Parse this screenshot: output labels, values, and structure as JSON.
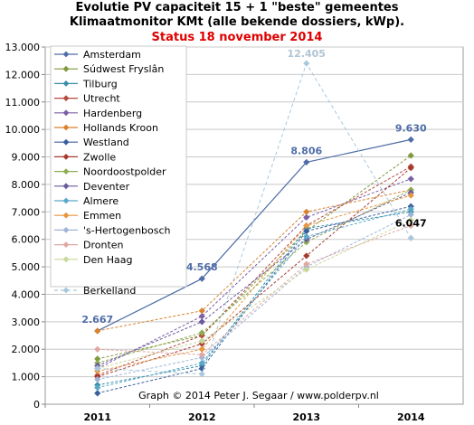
{
  "title": {
    "line1": "Evolutie PV capaciteit 15 + 1 \"beste\" gemeentes",
    "line2": "Klimaatmonitor KMt (alle bekende dossiers, kWp).",
    "status": "Status 18 november 2014"
  },
  "credit": "Graph © 2014 Peter J. Segaar / www.polderpv.nl",
  "chart_data": {
    "type": "line",
    "x": [
      "2011",
      "2012",
      "2013",
      "2014"
    ],
    "ylim": [
      0,
      13000
    ],
    "yticks": [
      {
        "v": 0,
        "label": "0"
      },
      {
        "v": 1000,
        "label": "1.000"
      },
      {
        "v": 2000,
        "label": "2.000"
      },
      {
        "v": 3000,
        "label": "3.000"
      },
      {
        "v": 4000,
        "label": "4.000"
      },
      {
        "v": 5000,
        "label": "5.000"
      },
      {
        "v": 6000,
        "label": "6.000"
      },
      {
        "v": 7000,
        "label": "7.000"
      },
      {
        "v": 8000,
        "label": "8.000"
      },
      {
        "v": 9000,
        "label": "9.000"
      },
      {
        "v": 10000,
        "label": "10.000"
      },
      {
        "v": 11000,
        "label": "11.000"
      },
      {
        "v": 12000,
        "label": "12.000"
      },
      {
        "v": 13000,
        "label": "13.000"
      }
    ],
    "grid": true,
    "legend": "top-left",
    "series": [
      {
        "name": "Amsterdam",
        "color": "#4f6da8",
        "values": [
          2667,
          4568,
          8806,
          9630
        ],
        "width": 1.2
      },
      {
        "name": "Súdwest Fryslân",
        "color": "#7f9a3c",
        "values": [
          1650,
          2500,
          6300,
          9050
        ]
      },
      {
        "name": "Tilburg",
        "color": "#3a8fa8",
        "values": [
          700,
          1400,
          6400,
          7000
        ]
      },
      {
        "name": "Utrecht",
        "color": "#b54a3e",
        "values": [
          1050,
          2500,
          6500,
          8650
        ]
      },
      {
        "name": "Hardenberg",
        "color": "#7a5fa5",
        "values": [
          1300,
          3200,
          6800,
          8200
        ]
      },
      {
        "name": "Hollands Kroon",
        "color": "#d9822b",
        "values": [
          2667,
          3400,
          7000,
          7800
        ]
      },
      {
        "name": "Westland",
        "color": "#3b5f9e",
        "values": [
          400,
          1300,
          6300,
          7200
        ]
      },
      {
        "name": "Zwolle",
        "color": "#a63a2e",
        "values": [
          1000,
          2200,
          5400,
          8600
        ]
      },
      {
        "name": "Noordoostpolder",
        "color": "#8fad52",
        "values": [
          1500,
          2600,
          5900,
          7800
        ]
      },
      {
        "name": "Deventer",
        "color": "#6a5a9e",
        "values": [
          1400,
          3000,
          6000,
          7700
        ]
      },
      {
        "name": "Almere",
        "color": "#5aa8c8",
        "values": [
          600,
          1500,
          6100,
          7100
        ]
      },
      {
        "name": "Emmen",
        "color": "#e7963f",
        "values": [
          1200,
          2000,
          6500,
          7600
        ]
      },
      {
        "name": "'s-Hertogenbosch",
        "color": "#9fb4d8",
        "values": [
          900,
          1700,
          5000,
          6900
        ]
      },
      {
        "name": "Dronten",
        "color": "#e0a8a0",
        "values": [
          2000,
          1800,
          5100,
          6500
        ]
      },
      {
        "name": "Den Haag",
        "color": "#c8d79a",
        "values": [
          1300,
          2300,
          4900,
          6700
        ]
      },
      {
        "name": "Berkelland",
        "color": "#a9c7dc",
        "values": [
          1300,
          1100,
          12405,
          6047
        ],
        "dashed": true
      }
    ],
    "data_labels": [
      {
        "text": "2.667",
        "series": 0,
        "point": 0,
        "color": "#4f6da8"
      },
      {
        "text": "4.568",
        "series": 0,
        "point": 1,
        "color": "#4f6da8"
      },
      {
        "text": "8.806",
        "series": 0,
        "point": 2,
        "color": "#4f6da8"
      },
      {
        "text": "9.630",
        "series": 0,
        "point": 3,
        "color": "#4f6da8"
      },
      {
        "text": "12.405",
        "series": 15,
        "point": 2,
        "color": "#b0c4d4"
      },
      {
        "text": "6.047",
        "series": 15,
        "point": 3,
        "color": "#000000"
      }
    ]
  }
}
